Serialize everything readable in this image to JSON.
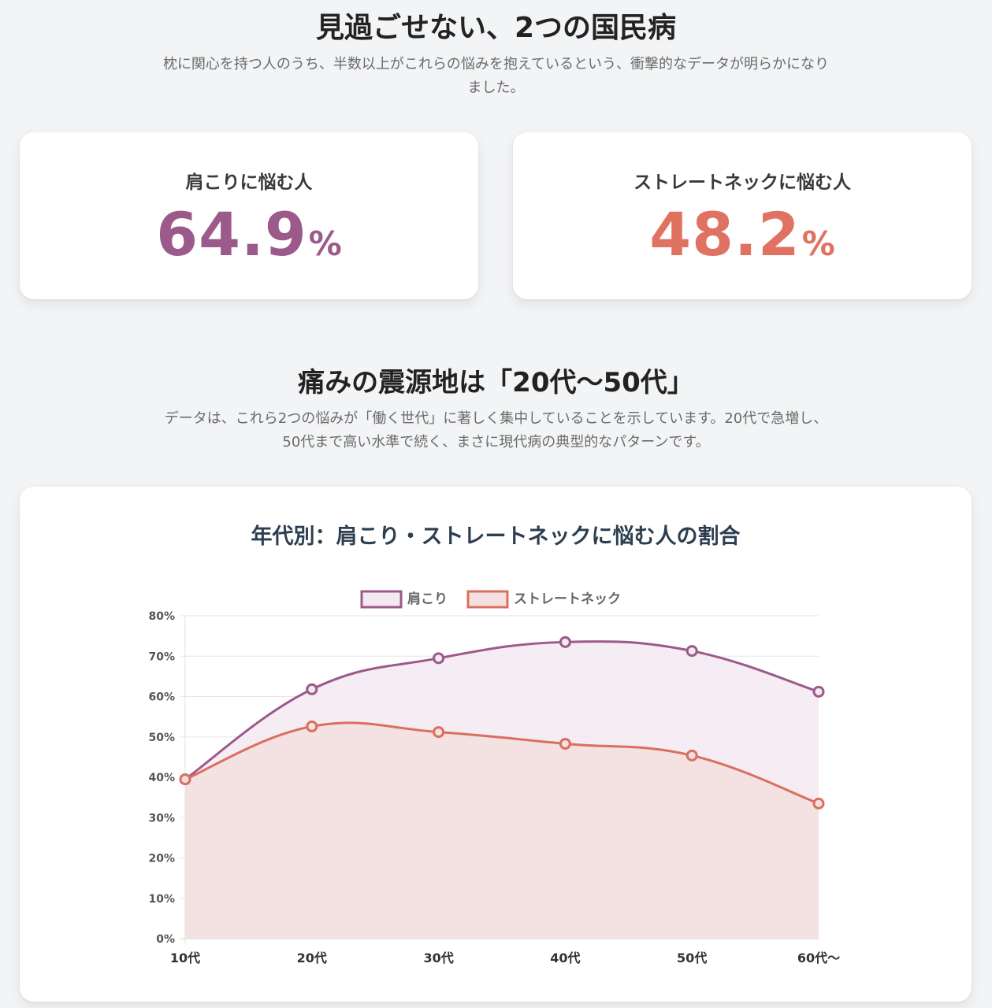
{
  "section1": {
    "title": "見過ごせない、2つの国民病",
    "description": "枕に関心を持つ人のうち、半数以上がこれらの悩みを抱えているという、衝撃的なデータが明らかになりました。"
  },
  "stats": [
    {
      "label": "肩こりに悩む人",
      "value": "64.9",
      "unit": "%",
      "color": "#9b5a8a"
    },
    {
      "label": "ストレートネックに悩む人",
      "value": "48.2",
      "unit": "%",
      "color": "#e07262"
    }
  ],
  "section2": {
    "title": "痛みの震源地は「20代〜50代」",
    "description": "データは、これら2つの悩みが「働く世代」に著しく集中していることを示しています。20代で急増し、50代まで高い水準で続く、まさに現代病の典型的なパターンです。"
  },
  "chart_data": {
    "type": "area",
    "title": "年代別：肩こり・ストレートネックに悩む人の割合",
    "categories": [
      "10代",
      "20代",
      "30代",
      "40代",
      "50代",
      "60代〜"
    ],
    "series": [
      {
        "name": "肩こり",
        "values": [
          39.5,
          61.8,
          69.5,
          73.5,
          71.3,
          61.2
        ],
        "color": "#9b5a8a",
        "fill": "#f4e9f1"
      },
      {
        "name": "ストレートネック",
        "values": [
          39.5,
          52.6,
          51.2,
          48.3,
          45.4,
          33.5
        ],
        "color": "#d9705f",
        "fill": "#f4e0e0"
      }
    ],
    "ylim": [
      0,
      80
    ],
    "yticks": [
      "0%",
      "10%",
      "20%",
      "30%",
      "40%",
      "50%",
      "60%",
      "70%",
      "80%"
    ],
    "grid": true,
    "legend": "top-center"
  }
}
